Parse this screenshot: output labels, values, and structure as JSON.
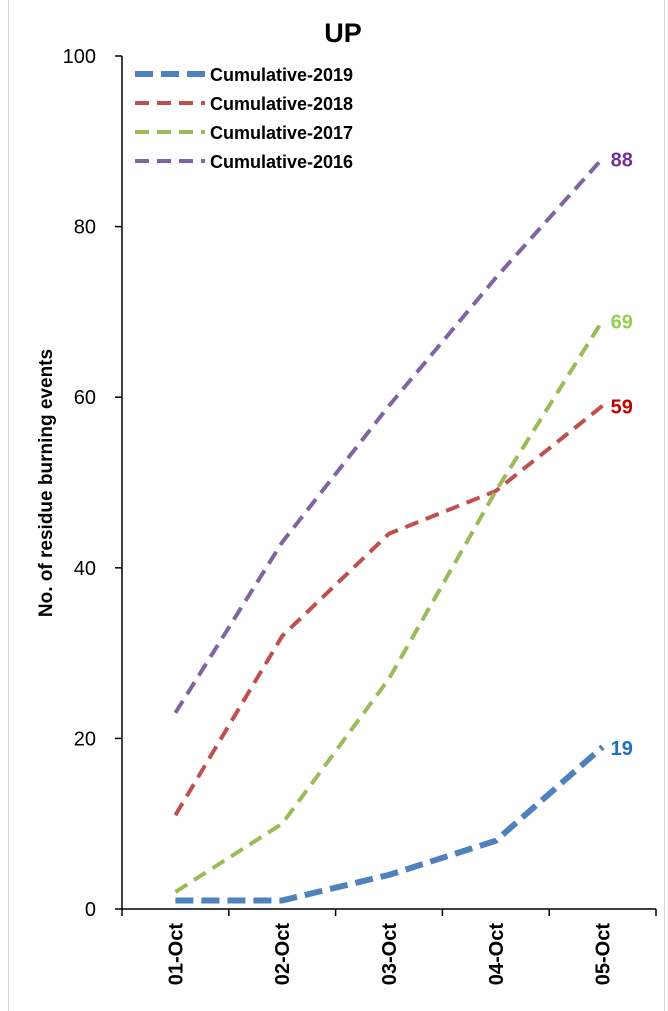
{
  "chart_data": {
    "type": "line",
    "title": "UP",
    "xlabel": "",
    "ylabel": "No. of residue burning events",
    "categories": [
      "01-Oct",
      "02-Oct",
      "03-Oct",
      "04-Oct",
      "05-Oct"
    ],
    "ylim": [
      0,
      100
    ],
    "yticks": [
      0,
      20,
      40,
      60,
      80,
      100
    ],
    "grid": false,
    "legend_position": "top-left",
    "series": [
      {
        "name": "Cumulative-2019",
        "values": [
          1,
          1,
          4,
          8,
          19
        ],
        "color": "#4f81bd",
        "label_color": "#1f6fbf",
        "end_label": "19",
        "line_style": "dashed",
        "thick": true
      },
      {
        "name": "Cumulative-2018",
        "values": [
          11,
          32,
          44,
          49,
          59
        ],
        "color": "#c0504d",
        "label_color": "#c00000",
        "end_label": "59",
        "line_style": "dashed",
        "thick": false
      },
      {
        "name": "Cumulative-2017",
        "values": [
          2,
          10,
          27,
          49,
          69
        ],
        "color": "#9bbb59",
        "label_color": "#92d050",
        "end_label": "69",
        "line_style": "dashed",
        "thick": false
      },
      {
        "name": "Cumulative-2016",
        "values": [
          23,
          43,
          59,
          74,
          88
        ],
        "color": "#8064a2",
        "label_color": "#7030a0",
        "end_label": "88",
        "line_style": "dashed",
        "thick": false
      }
    ]
  }
}
